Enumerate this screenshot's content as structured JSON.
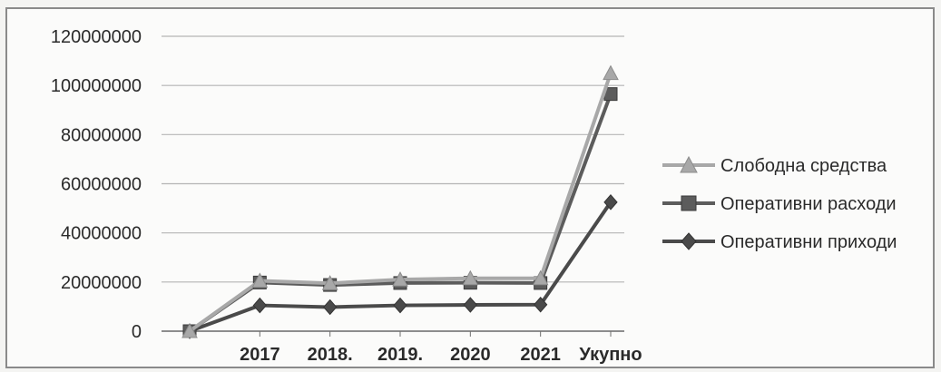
{
  "chart_data": {
    "type": "line",
    "categories": [
      "",
      "2017",
      "2018.",
      "2019.",
      "2020",
      "2021",
      "Укупно"
    ],
    "ylim": [
      0,
      120000000
    ],
    "yticks": [
      0,
      20000000,
      40000000,
      60000000,
      80000000,
      100000000,
      120000000
    ],
    "ytick_labels": [
      "0",
      "20000000",
      "40000000",
      "60000000",
      "80000000",
      "100000000",
      "120000000"
    ],
    "grid": true,
    "legend_position": "right",
    "series": [
      {
        "name": "Слободна средства",
        "marker": "triangle",
        "color": "#a8a8a8",
        "values": [
          0,
          20500000,
          19500000,
          21000000,
          21500000,
          21500000,
          105000000
        ]
      },
      {
        "name": "Оперативни расходи",
        "marker": "square",
        "color": "#5c5c5c",
        "values": [
          0,
          19800000,
          18800000,
          19600000,
          19700000,
          19600000,
          96500000
        ]
      },
      {
        "name": "Оперативни приходи",
        "marker": "diamond",
        "color": "#4a4a4a",
        "values": [
          0,
          10500000,
          9800000,
          10500000,
          10700000,
          10800000,
          52500000
        ]
      }
    ]
  }
}
